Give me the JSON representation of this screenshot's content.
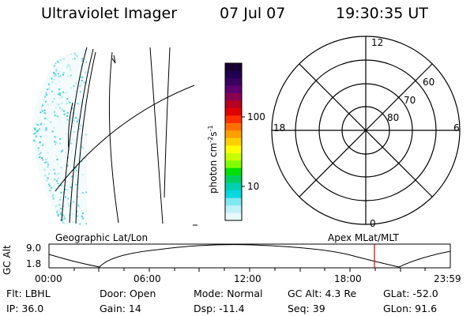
{
  "header": {
    "instrument": "Ultraviolet Imager",
    "date": "07 Jul 07",
    "time": "19:30:35 UT"
  },
  "colorbar": {
    "unit_label": "photon cm",
    "unit_exp1": "-2",
    "unit_s": "s",
    "unit_exp2": "-1",
    "ticks": [
      "100",
      "10"
    ],
    "colors": [
      "#1a0030",
      "#200050",
      "#3a0060",
      "#600070",
      "#8a0050",
      "#b80020",
      "#e00000",
      "#ff3000",
      "#ff7000",
      "#ffa000",
      "#ffd000",
      "#ffff00",
      "#c8ff00",
      "#80ff00",
      "#00e000",
      "#00d060",
      "#00d0b0",
      "#00d8e0",
      "#80e8f0",
      "#c0f0f8",
      "#e8f8fc"
    ]
  },
  "polar_plot": {
    "mlt_labels": [
      "12",
      "18",
      "6",
      "0"
    ],
    "lat_labels": [
      "60",
      "70",
      "80"
    ]
  },
  "timeline": {
    "y_label": "GC Alt",
    "y_ticks": [
      "9.0",
      "1.8"
    ],
    "left_title": "Geographic Lat/Lon",
    "right_title": "Apex MLat/MLT",
    "x_ticks": [
      "00:00",
      "06:00",
      "12:00",
      "18:00",
      "23:59"
    ],
    "marker_color": "#e00000"
  },
  "info": {
    "filter": "Flt: LBHL",
    "door": "Door: Open",
    "mode": "Mode: Normal",
    "gc_alt": "GC Alt: 4.3 Re",
    "glat": "GLat: -52.0",
    "ip": "IP: 36.0",
    "gain": "Gain: 14",
    "dsp": "Dsp:  -11.4",
    "seq": "Seq: 39",
    "glon": "GLon:  91.6"
  }
}
